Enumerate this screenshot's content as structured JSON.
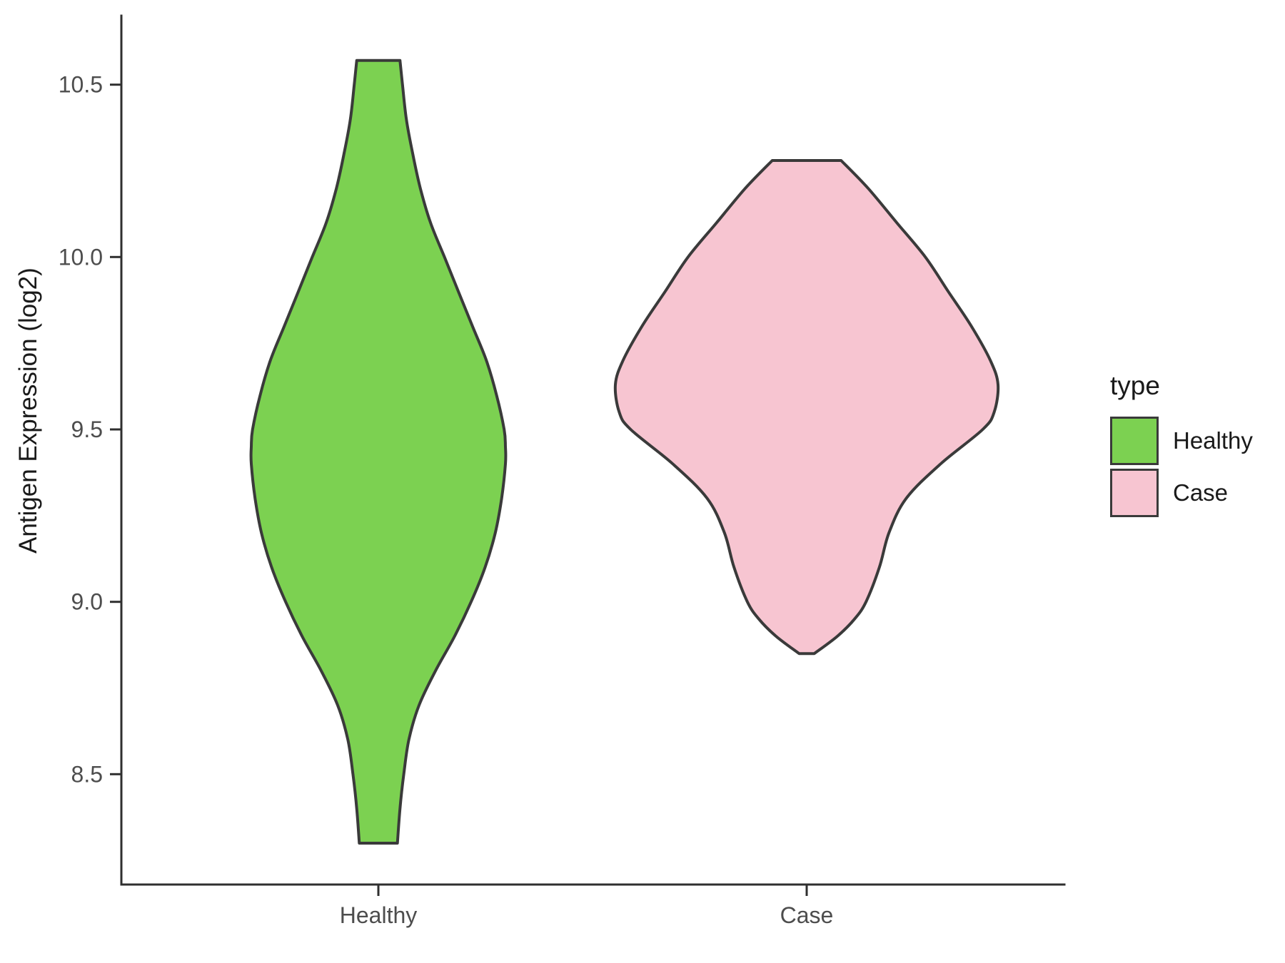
{
  "chart_data": {
    "type": "violin",
    "title": "",
    "xlabel": "",
    "ylabel": "Antigen Expression (log2)",
    "categories": [
      "Healthy",
      "Case"
    ],
    "ylim": [
      8.18,
      10.7
    ],
    "grid": false,
    "yticks": {
      "values": [
        10.5,
        10.0,
        9.5,
        9.0,
        8.5
      ],
      "labels": [
        "10.5",
        "10.0",
        "9.5",
        "9.0",
        "8.5"
      ]
    },
    "legend": {
      "title": "type",
      "position": "right",
      "entries": [
        {
          "label": "Healthy",
          "color": "#7CD151"
        },
        {
          "label": "Case",
          "color": "#F7C5D1"
        }
      ]
    },
    "series": [
      {
        "name": "Healthy",
        "fill": "#7CD151",
        "stroke": "#3A3A3A",
        "y_min": 8.3,
        "y_max": 10.57,
        "profile": [
          [
            10.57,
            0.17
          ],
          [
            10.5,
            0.19
          ],
          [
            10.4,
            0.22
          ],
          [
            10.3,
            0.27
          ],
          [
            10.2,
            0.33
          ],
          [
            10.1,
            0.41
          ],
          [
            10.0,
            0.52
          ],
          [
            9.9,
            0.63
          ],
          [
            9.8,
            0.74
          ],
          [
            9.7,
            0.85
          ],
          [
            9.6,
            0.93
          ],
          [
            9.5,
            0.99
          ],
          [
            9.45,
            1.0
          ],
          [
            9.4,
            1.0
          ],
          [
            9.3,
            0.97
          ],
          [
            9.2,
            0.92
          ],
          [
            9.1,
            0.84
          ],
          [
            9.0,
            0.73
          ],
          [
            8.9,
            0.6
          ],
          [
            8.8,
            0.45
          ],
          [
            8.7,
            0.32
          ],
          [
            8.6,
            0.24
          ],
          [
            8.5,
            0.2
          ],
          [
            8.4,
            0.17
          ],
          [
            8.3,
            0.15
          ]
        ]
      },
      {
        "name": "Case",
        "fill": "#F7C5D1",
        "stroke": "#3A3A3A",
        "y_min": 8.85,
        "y_max": 10.28,
        "profile": [
          [
            10.28,
            0.18
          ],
          [
            10.2,
            0.32
          ],
          [
            10.1,
            0.47
          ],
          [
            10.0,
            0.62
          ],
          [
            9.9,
            0.74
          ],
          [
            9.8,
            0.86
          ],
          [
            9.7,
            0.96
          ],
          [
            9.63,
            1.0
          ],
          [
            9.55,
            0.98
          ],
          [
            9.5,
            0.92
          ],
          [
            9.4,
            0.7
          ],
          [
            9.3,
            0.52
          ],
          [
            9.2,
            0.43
          ],
          [
            9.1,
            0.38
          ],
          [
            9.0,
            0.31
          ],
          [
            8.95,
            0.25
          ],
          [
            8.9,
            0.16
          ],
          [
            8.85,
            0.04
          ]
        ]
      }
    ]
  },
  "colors": {
    "axis": "#2F2F2F",
    "tick_text": "#4D4D4D",
    "label_text": "#1A1A1A"
  }
}
